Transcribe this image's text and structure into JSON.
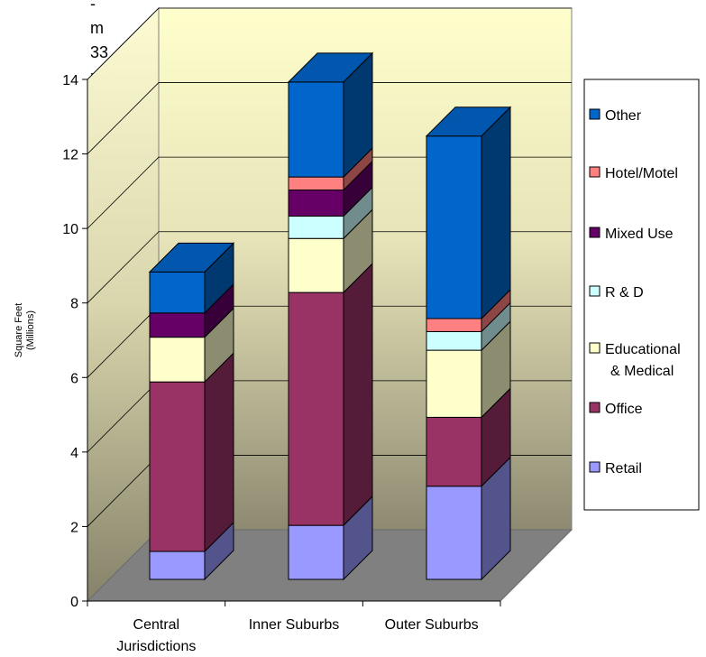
{
  "fragment_text": [
    "-",
    "m",
    "33",
    "nt"
  ],
  "chart_data": {
    "type": "bar",
    "stacked": true,
    "three_d": true,
    "categories": [
      "Central Jurisdictions",
      "Inner Suburbs",
      "Outer Suburbs"
    ],
    "category_lines": [
      [
        "Central",
        "Jurisdictions"
      ],
      [
        "Inner Suburbs"
      ],
      [
        "Outer Suburbs"
      ]
    ],
    "ylabel_lines": [
      "Square Feet",
      "(Millions)"
    ],
    "xlabel": "",
    "ylim": [
      0,
      14
    ],
    "yticks": [
      0,
      2,
      4,
      6,
      8,
      10,
      12,
      14
    ],
    "grid": true,
    "legend_position": "right",
    "series": [
      {
        "name": "Retail",
        "label_lines": [
          "Retail"
        ],
        "color": "#9999ff",
        "values": [
          0.75,
          1.45,
          2.5
        ]
      },
      {
        "name": "Office",
        "label_lines": [
          "Office"
        ],
        "color": "#993366",
        "values": [
          4.55,
          6.25,
          1.85
        ]
      },
      {
        "name": "Educational & Medical",
        "label_lines": [
          "Educational",
          "& Medical"
        ],
        "color": "#ffffcc",
        "values": [
          1.2,
          1.45,
          1.8
        ]
      },
      {
        "name": "R & D",
        "label_lines": [
          "R & D"
        ],
        "color": "#ccffff",
        "values": [
          0.0,
          0.6,
          0.5
        ]
      },
      {
        "name": "Mixed Use",
        "label_lines": [
          "Mixed Use"
        ],
        "color": "#660066",
        "values": [
          0.65,
          0.7,
          0.0
        ]
      },
      {
        "name": "Hotel/Motel",
        "label_lines": [
          "Hotel/Motel"
        ],
        "color": "#ff8080",
        "values": [
          0.0,
          0.35,
          0.35
        ]
      },
      {
        "name": "Other",
        "label_lines": [
          "Other"
        ],
        "color": "#0066cc",
        "values": [
          1.1,
          2.55,
          4.9
        ]
      }
    ],
    "legend_order": [
      "Other",
      "Hotel/Motel",
      "Mixed Use",
      "R & D",
      "Educational & Medical",
      "Office",
      "Retail"
    ]
  }
}
